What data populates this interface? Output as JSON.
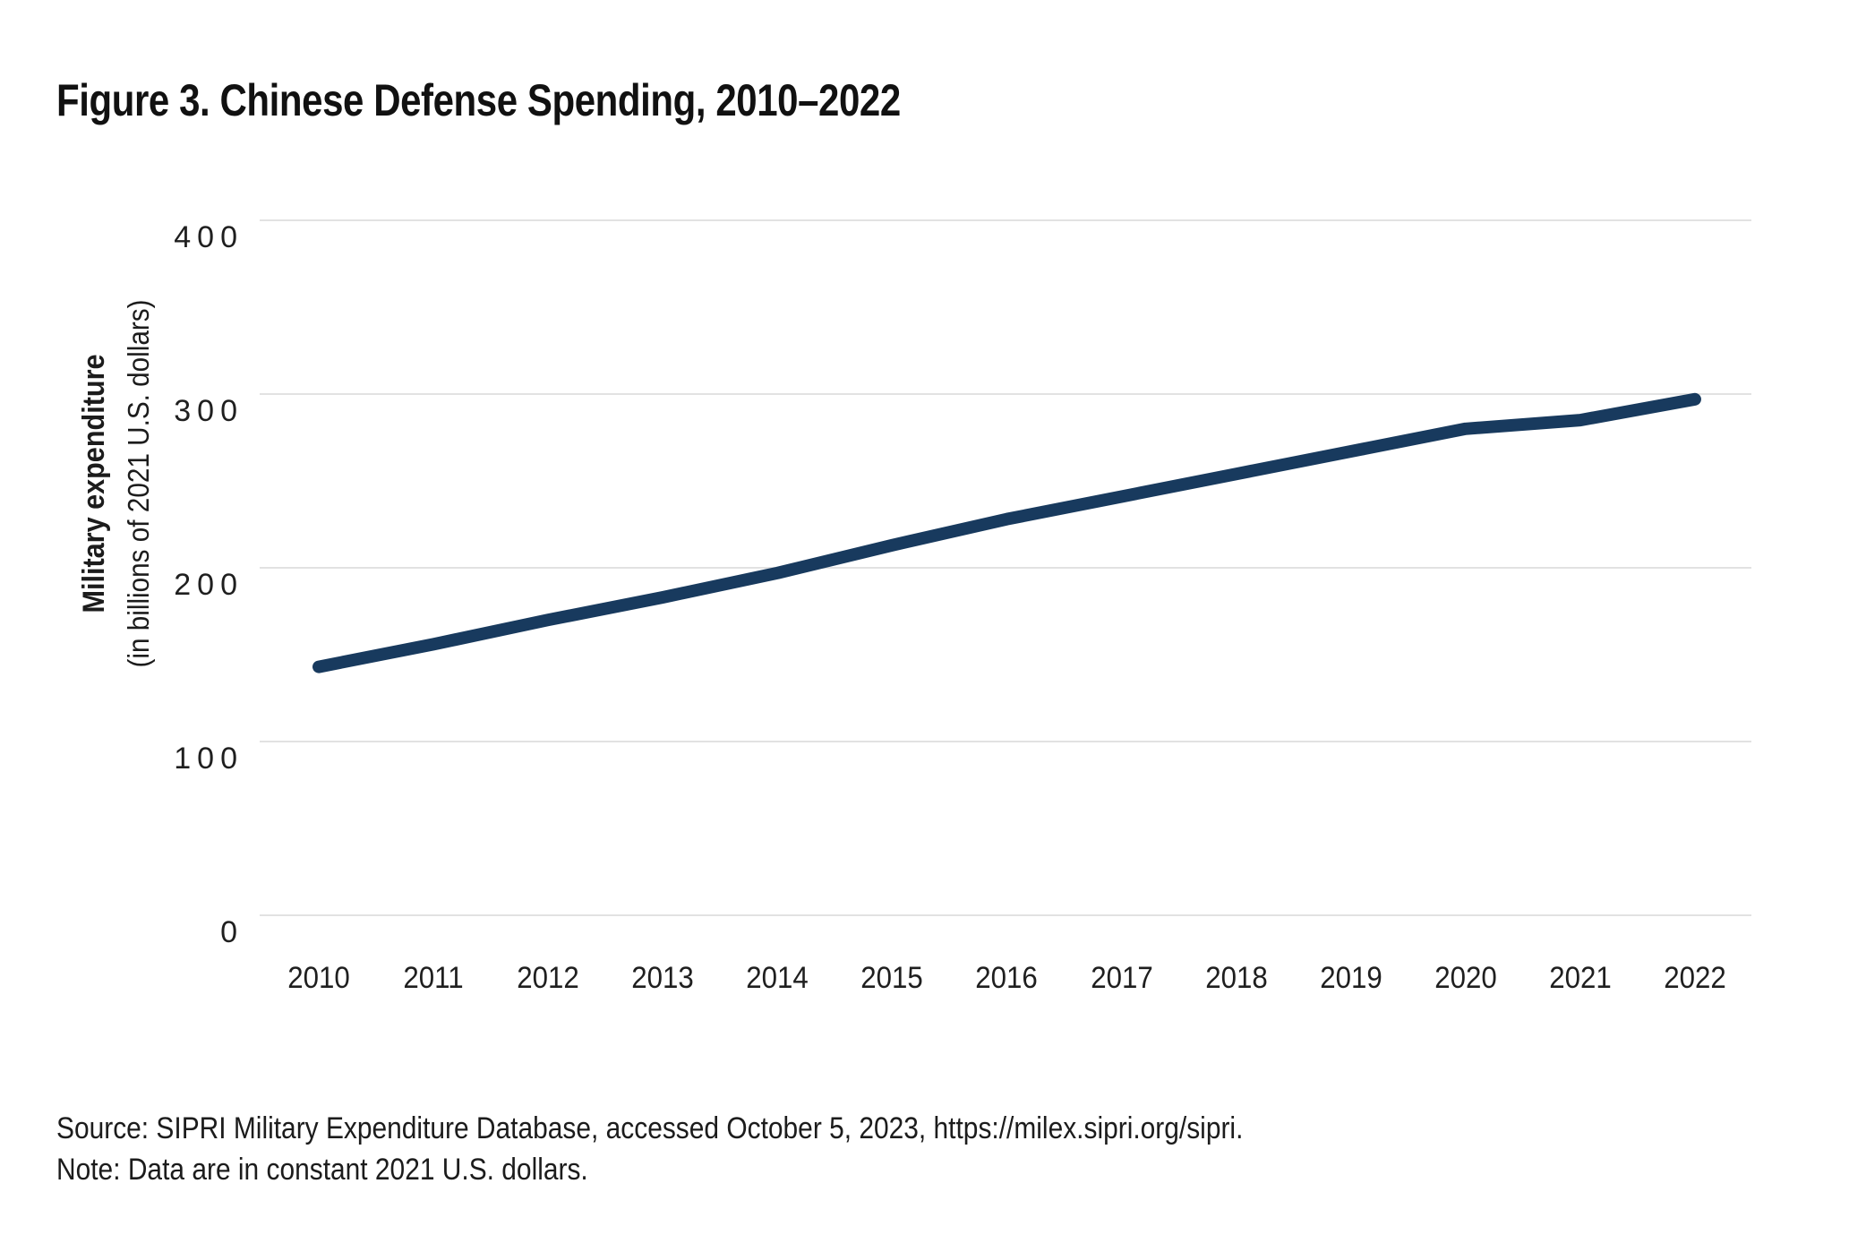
{
  "title": "Figure 3. Chinese Defense Spending, 2010–2022",
  "y_axis": {
    "label_bold": "Military expenditure",
    "label_sub": "(in billions of 2021 U.S. dollars)"
  },
  "source": "Source: SIPRI Military Expenditure Database, accessed October 5, 2023, https://milex.sipri.org/sipri.",
  "note": "Note: Data are in constant 2021 U.S. dollars.",
  "chart_data": {
    "type": "line",
    "title": "Figure 3. Chinese Defense Spending, 2010–2022",
    "x": [
      2010,
      2011,
      2012,
      2013,
      2014,
      2015,
      2016,
      2017,
      2018,
      2019,
      2020,
      2021,
      2022
    ],
    "series": [
      {
        "name": "Chinese military expenditure (billions of 2021 U.S. dollars)",
        "values": [
          143,
          156,
          170,
          183,
          197,
          213,
          228,
          241,
          254,
          267,
          280,
          285,
          297
        ]
      }
    ],
    "xlabel": "",
    "ylabel": "Military expenditure (in billions of 2021 U.S. dollars)",
    "ylim": [
      0,
      400
    ],
    "yticks": [
      400,
      300,
      200,
      100,
      0
    ],
    "xticks": [
      "2010",
      "2011",
      "2012",
      "2013",
      "2014",
      "2015",
      "2016",
      "2017",
      "2018",
      "2019",
      "2020",
      "2021",
      "2022"
    ],
    "grid": "horizontal",
    "legend_position": "none",
    "line_color": "#183A5E",
    "grid_color": "#E2E2E2",
    "text_color": "#1F1F1F"
  }
}
